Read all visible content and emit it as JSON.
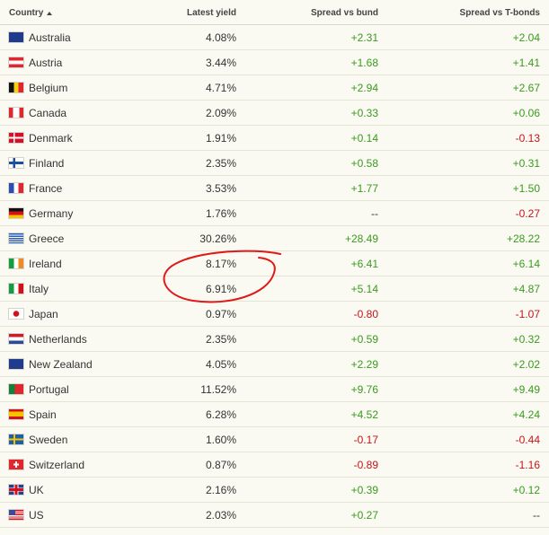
{
  "table": {
    "columns": [
      "Country",
      "Latest yield",
      "Spread vs bund",
      "Spread vs T-bonds"
    ],
    "rows": [
      [
        "Australia",
        "4.08%",
        "+2.31",
        "+2.04"
      ],
      [
        "Austria",
        "3.44%",
        "+1.68",
        "+1.41"
      ],
      [
        "Belgium",
        "4.71%",
        "+2.94",
        "+2.67"
      ],
      [
        "Canada",
        "2.09%",
        "+0.33",
        "+0.06"
      ],
      [
        "Denmark",
        "1.91%",
        "+0.14",
        "-0.13"
      ],
      [
        "Finland",
        "2.35%",
        "+0.58",
        "+0.31"
      ],
      [
        "France",
        "3.53%",
        "+1.77",
        "+1.50"
      ],
      [
        "Germany",
        "1.76%",
        "--",
        "-0.27"
      ],
      [
        "Greece",
        "30.26%",
        "+28.49",
        "+28.22"
      ],
      [
        "Ireland",
        "8.17%",
        "+6.41",
        "+6.14"
      ],
      [
        "Italy",
        "6.91%",
        "+5.14",
        "+4.87"
      ],
      [
        "Japan",
        "0.97%",
        "-0.80",
        "-1.07"
      ],
      [
        "Netherlands",
        "2.35%",
        "+0.59",
        "+0.32"
      ],
      [
        "New Zealand",
        "4.05%",
        "+2.29",
        "+2.02"
      ],
      [
        "Portugal",
        "11.52%",
        "+9.76",
        "+9.49"
      ],
      [
        "Spain",
        "6.28%",
        "+4.52",
        "+4.24"
      ],
      [
        "Sweden",
        "1.60%",
        "-0.17",
        "-0.44"
      ],
      [
        "Switzerland",
        "0.87%",
        "-0.89",
        "-1.16"
      ],
      [
        "UK",
        "2.16%",
        "+0.39",
        "+0.12"
      ],
      [
        "US",
        "2.03%",
        "+0.27",
        "--"
      ]
    ]
  }
}
